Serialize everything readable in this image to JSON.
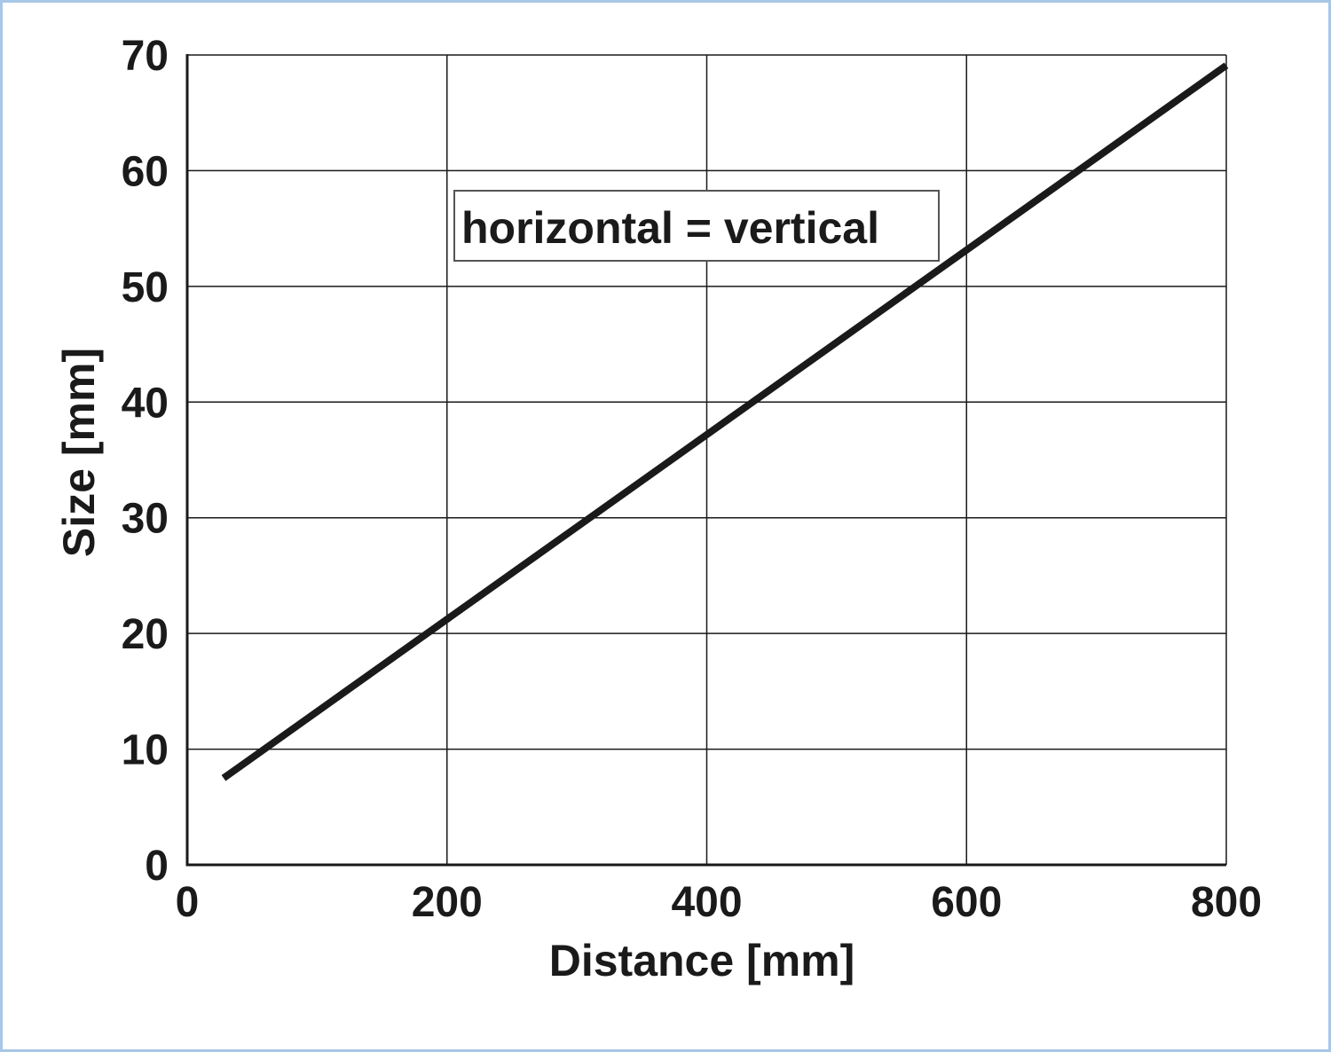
{
  "chart_data": {
    "type": "line",
    "title": "",
    "xlabel": "Distance [mm]",
    "ylabel": "Size [mm]",
    "xlim": [
      0,
      800
    ],
    "ylim": [
      0,
      70
    ],
    "xticks": [
      "0",
      "200",
      "400",
      "600",
      "800"
    ],
    "yticks": [
      "0",
      "10",
      "20",
      "30",
      "40",
      "50",
      "60",
      "70"
    ],
    "grid": true,
    "annotation": "horizontal = vertical",
    "series": [
      {
        "x": [
          28,
          800
        ],
        "y": [
          7.5,
          69.1
        ]
      }
    ],
    "colors": {
      "line": "#1a1a1a",
      "grid": "#1a1a1a",
      "frame_border": "#a8c6e6"
    }
  }
}
